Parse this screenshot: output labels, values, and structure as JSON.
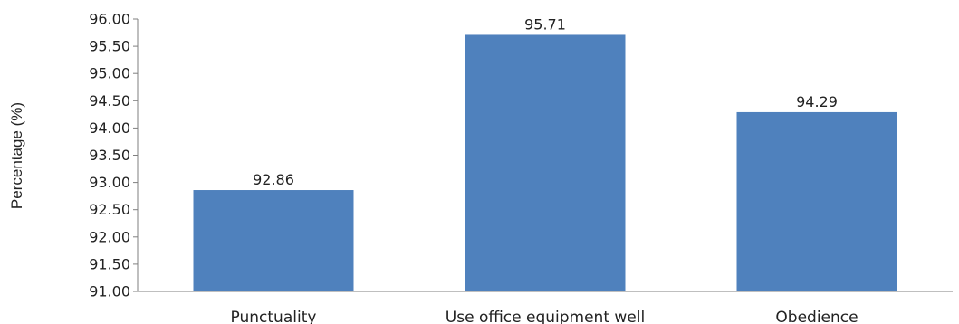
{
  "chart_data": {
    "type": "bar",
    "title": "",
    "xlabel": "",
    "ylabel": "Percentage (%)",
    "categories": [
      "Punctuality",
      "Use office equipment well",
      "Obedience"
    ],
    "values": [
      92.86,
      95.71,
      94.29
    ],
    "value_labels": [
      "92.86",
      "95.71",
      "94.29"
    ],
    "ylim": [
      91.0,
      96.0
    ],
    "yticks": [
      "91.00",
      "91.50",
      "92.00",
      "92.50",
      "93.00",
      "93.50",
      "94.00",
      "94.50",
      "95.00",
      "95.50",
      "96.00"
    ],
    "grid": false,
    "legend": "none",
    "bar_color": "#4f81bd"
  }
}
